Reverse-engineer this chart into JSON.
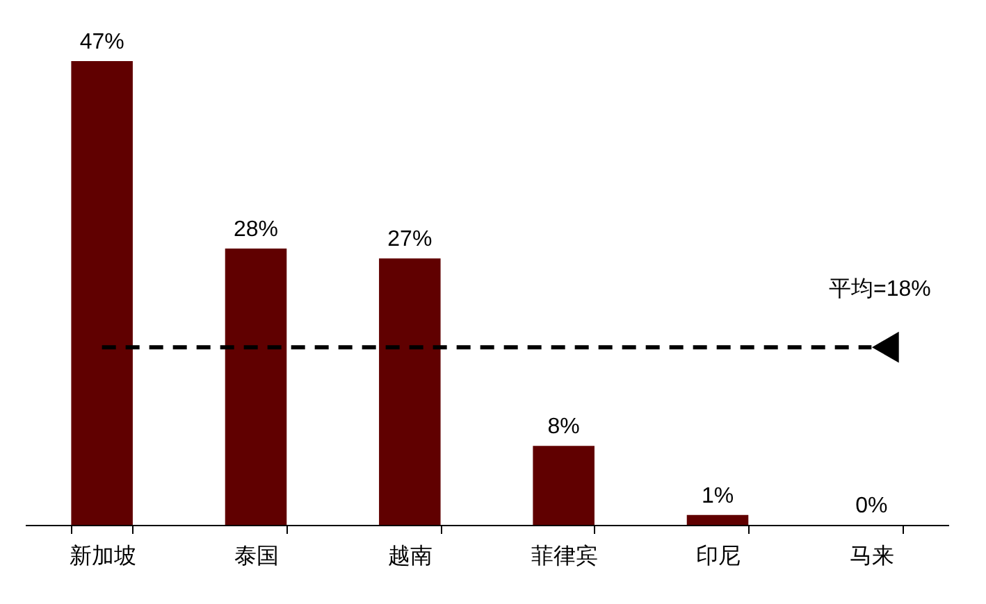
{
  "chart_data": {
    "type": "bar",
    "categories": [
      "新加坡",
      "泰国",
      "越南",
      "菲律宾",
      "印尼",
      "马来"
    ],
    "values": [
      47,
      28,
      27,
      8,
      1,
      0
    ],
    "color": "#600000",
    "value_labels": [
      "47%",
      "28%",
      "27%",
      "8%",
      "1%",
      "0%"
    ],
    "ref_lines": [
      {
        "axis": "y",
        "value": 18,
        "label": "平均=18%",
        "color": "#000000",
        "line_style": "dashed"
      }
    ]
  }
}
